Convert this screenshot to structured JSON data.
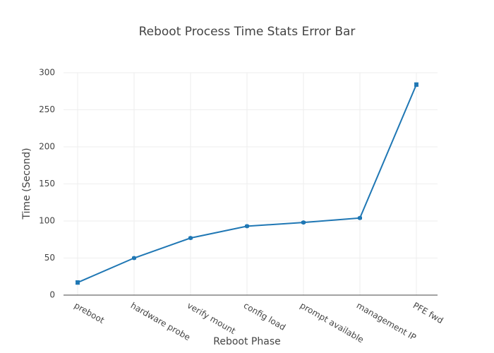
{
  "chart_data": {
    "type": "line",
    "title": "Reboot Process Time Stats Error Bar",
    "xlabel": "Reboot Phase",
    "ylabel": "Time (Second)",
    "categories": [
      "preboot",
      "hardware probe",
      "verify mount",
      "config load",
      "prompt available",
      "management IP",
      "PFE fwd"
    ],
    "values": [
      17,
      50,
      77,
      93,
      98,
      104,
      284
    ],
    "errors": [
      2,
      1,
      1,
      1,
      1,
      1,
      2
    ],
    "color": "#1f77b4",
    "ylim": [
      0,
      300
    ],
    "yticks": [
      0,
      50,
      100,
      150,
      200,
      250,
      300
    ],
    "grid": true
  }
}
